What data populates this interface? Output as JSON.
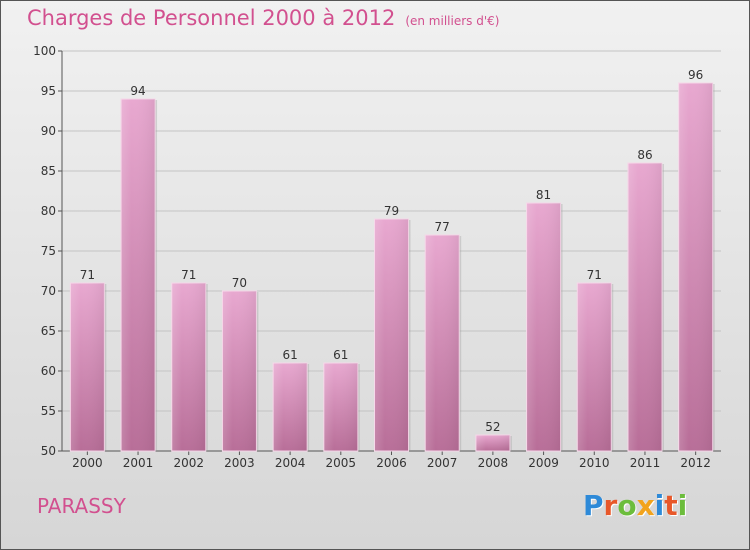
{
  "title": "Charges de Personnel 2000 à 2012",
  "title_unit": "(en milliers d'€)",
  "commune": "PARASSY",
  "logo": {
    "text": "Proxiti",
    "letters": [
      {
        "char": "P",
        "color": "#2e8ad8"
      },
      {
        "char": "r",
        "color": "#e8582a"
      },
      {
        "char": "o",
        "color": "#6cbd3c"
      },
      {
        "char": "x",
        "color": "#f2a31c"
      },
      {
        "char": "i",
        "color": "#2e8ad8"
      },
      {
        "char": "t",
        "color": "#e8582a"
      },
      {
        "char": "i",
        "color": "#6cbd3c"
      }
    ]
  },
  "colors": {
    "bar_top": "#e8a8d0",
    "bar_bottom": "#b86e98",
    "accent": "#d2508f"
  },
  "chart_data": {
    "type": "bar",
    "title": "Charges de Personnel 2000 à 2012",
    "subtitle": "(en milliers d'€)",
    "xlabel": "",
    "ylabel": "",
    "categories": [
      "2000",
      "2001",
      "2002",
      "2003",
      "2004",
      "2005",
      "2006",
      "2007",
      "2008",
      "2009",
      "2010",
      "2011",
      "2012"
    ],
    "values": [
      71,
      94,
      71,
      70,
      61,
      61,
      79,
      77,
      52,
      81,
      71,
      86,
      96
    ],
    "ylim": [
      50,
      100
    ],
    "yticks": [
      50,
      55,
      60,
      65,
      70,
      75,
      80,
      85,
      90,
      95,
      100
    ],
    "grid": true
  }
}
